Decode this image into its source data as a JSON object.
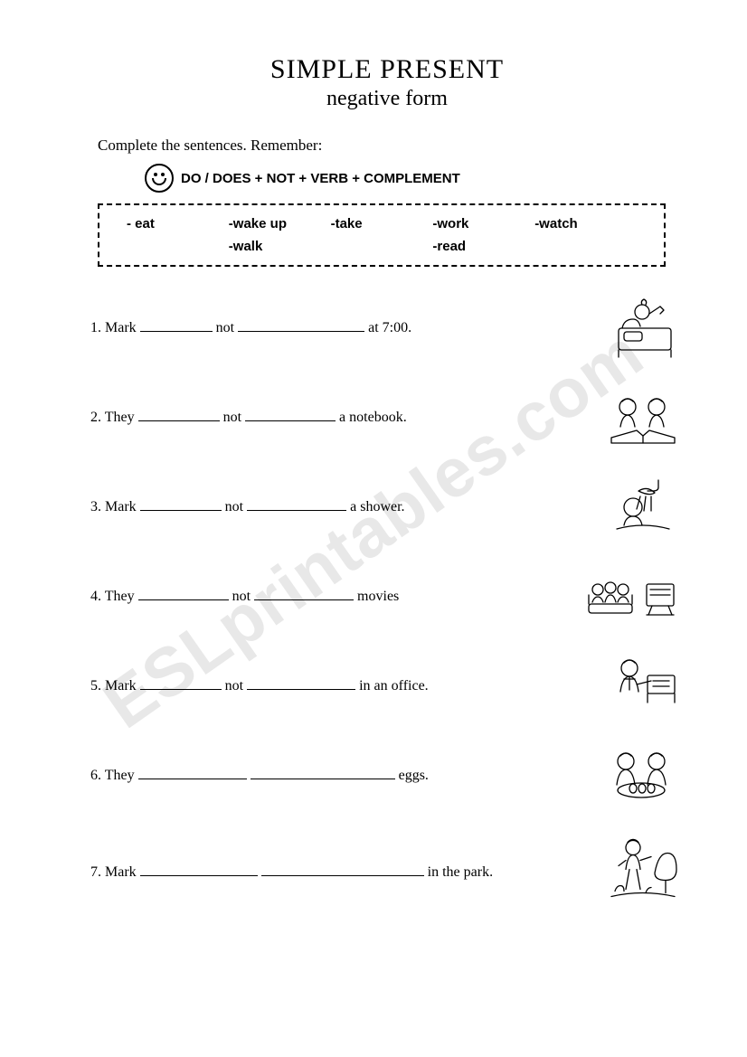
{
  "title": "SIMPLE PRESENT",
  "subtitle": "negative form",
  "instruction": "Complete the sentences. Remember:",
  "formula": "DO / DOES + NOT + VERB + COMPLEMENT",
  "word_box": {
    "row1": [
      "- eat",
      "-wake up",
      "-take",
      "-work",
      "-watch"
    ],
    "row2": [
      "",
      "-walk",
      "",
      "-read",
      ""
    ]
  },
  "exercises": [
    {
      "num": "1.",
      "parts": [
        "Mark ",
        " not ",
        " at 7:00."
      ],
      "blanks": [
        80,
        140
      ],
      "icon": "wakeup"
    },
    {
      "num": "2.",
      "parts": [
        "They ",
        " not ",
        " a notebook."
      ],
      "blanks": [
        90,
        100
      ],
      "icon": "notebook"
    },
    {
      "num": "3.",
      "parts": [
        "Mark ",
        " not ",
        " a shower."
      ],
      "blanks": [
        90,
        110
      ],
      "icon": "shower"
    },
    {
      "num": "4.",
      "parts": [
        "They ",
        " not ",
        " movies"
      ],
      "blanks": [
        100,
        110
      ],
      "icon": "movies"
    },
    {
      "num": "5.",
      "parts": [
        "Mark ",
        " not ",
        " in an office."
      ],
      "blanks": [
        90,
        120
      ],
      "icon": "office"
    },
    {
      "num": "6.",
      "parts": [
        "They ",
        " ",
        " eggs."
      ],
      "blanks": [
        120,
        160
      ],
      "icon": "eggs"
    },
    {
      "num": "7.",
      "parts": [
        "Mark ",
        " ",
        " in the park."
      ],
      "blanks": [
        130,
        180
      ],
      "icon": "park"
    }
  ],
  "watermark": "ESLprintables.com"
}
